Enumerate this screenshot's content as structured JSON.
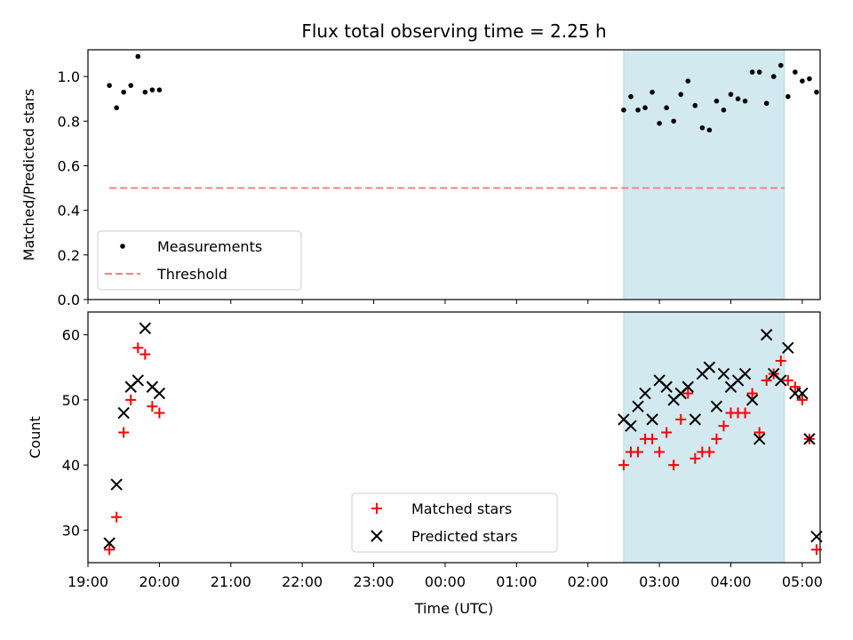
{
  "figure": {
    "title": "Flux total observing time = 2.25 h",
    "xlabel": "Time (UTC)"
  },
  "chart_data": [
    {
      "type": "scatter",
      "ylabel": "Matched/Predicted stars",
      "ylim": [
        0,
        1.12
      ],
      "yticks": [
        "0.0",
        "0.2",
        "0.4",
        "0.6",
        "0.8",
        "1.0"
      ],
      "xlim": [
        "19:00",
        "05:15"
      ],
      "xticks": [],
      "legend_position": "lower-left",
      "shaded_region": {
        "x": [
          "02:30",
          "04:45"
        ],
        "color": "#d3e9f0"
      },
      "series": [
        {
          "name": "Measurements",
          "kind": "points",
          "color": "#000000",
          "points": [
            [
              "19:18",
              0.96
            ],
            [
              "19:24",
              0.86
            ],
            [
              "19:30",
              0.93
            ],
            [
              "19:36",
              0.96
            ],
            [
              "19:42",
              1.09
            ],
            [
              "19:48",
              0.93
            ],
            [
              "19:54",
              0.94
            ],
            [
              "20:00",
              0.94
            ],
            [
              "02:30",
              0.85
            ],
            [
              "02:36",
              0.91
            ],
            [
              "02:42",
              0.85
            ],
            [
              "02:48",
              0.86
            ],
            [
              "02:54",
              0.93
            ],
            [
              "03:00",
              0.79
            ],
            [
              "03:06",
              0.86
            ],
            [
              "03:12",
              0.8
            ],
            [
              "03:18",
              0.92
            ],
            [
              "03:24",
              0.98
            ],
            [
              "03:30",
              0.87
            ],
            [
              "03:36",
              0.77
            ],
            [
              "03:42",
              0.76
            ],
            [
              "03:48",
              0.89
            ],
            [
              "03:54",
              0.85
            ],
            [
              "04:00",
              0.92
            ],
            [
              "04:06",
              0.9
            ],
            [
              "04:12",
              0.89
            ],
            [
              "04:18",
              1.02
            ],
            [
              "04:24",
              1.02
            ],
            [
              "04:30",
              0.88
            ],
            [
              "04:36",
              1.0
            ],
            [
              "04:42",
              1.05
            ],
            [
              "04:48",
              0.91
            ],
            [
              "04:54",
              1.02
            ],
            [
              "05:00",
              0.98
            ],
            [
              "05:06",
              0.99
            ],
            [
              "05:12",
              0.93
            ]
          ]
        },
        {
          "name": "Threshold",
          "kind": "dashed-line",
          "color": "#ff7f7f",
          "x": [
            "19:18",
            "04:45"
          ],
          "y": [
            0.5,
            0.5
          ]
        }
      ]
    },
    {
      "type": "scatter",
      "ylabel": "Count",
      "ylim": [
        25,
        63.5
      ],
      "yticks": [
        "30",
        "40",
        "50",
        "60"
      ],
      "xlim": [
        "19:00",
        "05:15"
      ],
      "xticks": [
        "19:00",
        "20:00",
        "21:00",
        "22:00",
        "23:00",
        "00:00",
        "01:00",
        "02:00",
        "03:00",
        "04:00",
        "05:00"
      ],
      "legend_position": "lower-center",
      "shaded_region": {
        "x": [
          "02:30",
          "04:45"
        ],
        "color": "#d3e9f0"
      },
      "series": [
        {
          "name": "Matched stars",
          "kind": "plus",
          "color": "#ff0000",
          "points": [
            [
              "19:18",
              27
            ],
            [
              "19:24",
              32
            ],
            [
              "19:30",
              45
            ],
            [
              "19:36",
              50
            ],
            [
              "19:42",
              58
            ],
            [
              "19:48",
              57
            ],
            [
              "19:54",
              49
            ],
            [
              "20:00",
              48
            ],
            [
              "02:30",
              40
            ],
            [
              "02:36",
              42
            ],
            [
              "02:42",
              42
            ],
            [
              "02:48",
              44
            ],
            [
              "02:54",
              44
            ],
            [
              "03:00",
              42
            ],
            [
              "03:06",
              45
            ],
            [
              "03:12",
              40
            ],
            [
              "03:18",
              47
            ],
            [
              "03:24",
              51
            ],
            [
              "03:30",
              41
            ],
            [
              "03:36",
              42
            ],
            [
              "03:42",
              42
            ],
            [
              "03:48",
              44
            ],
            [
              "03:54",
              46
            ],
            [
              "04:00",
              48
            ],
            [
              "04:06",
              48
            ],
            [
              "04:12",
              48
            ],
            [
              "04:18",
              51
            ],
            [
              "04:24",
              45
            ],
            [
              "04:30",
              53
            ],
            [
              "04:36",
              54
            ],
            [
              "04:42",
              56
            ],
            [
              "04:48",
              53
            ],
            [
              "04:54",
              52
            ],
            [
              "05:00",
              50
            ],
            [
              "05:06",
              44
            ],
            [
              "05:12",
              27
            ]
          ]
        },
        {
          "name": "Predicted stars",
          "kind": "cross",
          "color": "#000000",
          "points": [
            [
              "19:18",
              28
            ],
            [
              "19:24",
              37
            ],
            [
              "19:30",
              48
            ],
            [
              "19:36",
              52
            ],
            [
              "19:42",
              53
            ],
            [
              "19:48",
              61
            ],
            [
              "19:54",
              52
            ],
            [
              "20:00",
              51
            ],
            [
              "02:30",
              47
            ],
            [
              "02:36",
              46
            ],
            [
              "02:42",
              49
            ],
            [
              "02:48",
              51
            ],
            [
              "02:54",
              47
            ],
            [
              "03:00",
              53
            ],
            [
              "03:06",
              52
            ],
            [
              "03:12",
              50
            ],
            [
              "03:18",
              51
            ],
            [
              "03:24",
              52
            ],
            [
              "03:30",
              47
            ],
            [
              "03:36",
              54
            ],
            [
              "03:42",
              55
            ],
            [
              "03:48",
              49
            ],
            [
              "03:54",
              54
            ],
            [
              "04:00",
              52
            ],
            [
              "04:06",
              53
            ],
            [
              "04:12",
              54
            ],
            [
              "04:18",
              50
            ],
            [
              "04:24",
              44
            ],
            [
              "04:30",
              60
            ],
            [
              "04:36",
              54
            ],
            [
              "04:42",
              53
            ],
            [
              "04:48",
              58
            ],
            [
              "04:54",
              51
            ],
            [
              "05:00",
              51
            ],
            [
              "05:06",
              44
            ],
            [
              "05:12",
              29
            ]
          ]
        }
      ]
    }
  ]
}
